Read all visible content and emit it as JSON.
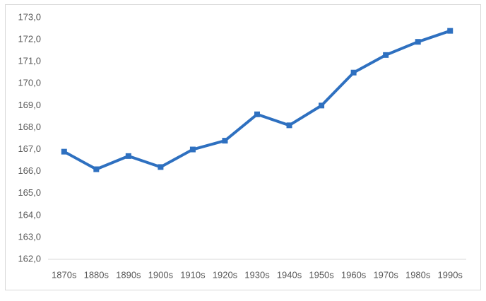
{
  "chart_data": {
    "type": "line",
    "categories": [
      "1870s",
      "1880s",
      "1890s",
      "1900s",
      "1910s",
      "1920s",
      "1930s",
      "1940s",
      "1950s",
      "1960s",
      "1970s",
      "1980s",
      "1990s"
    ],
    "series": [
      {
        "color": "#2e70c0",
        "values": [
          166.9,
          166.1,
          166.7,
          166.2,
          167.0,
          167.4,
          168.6,
          168.1,
          169.0,
          170.5,
          171.3,
          171.9,
          172.4
        ]
      }
    ],
    "ylim": [
      162,
      173
    ],
    "yticks": [
      {
        "value": 162,
        "label": "162,0"
      },
      {
        "value": 163,
        "label": "163,0"
      },
      {
        "value": 164,
        "label": "164,0"
      },
      {
        "value": 165,
        "label": "165,0"
      },
      {
        "value": 166,
        "label": "166,0"
      },
      {
        "value": 167,
        "label": "167,0"
      },
      {
        "value": 168,
        "label": "168,0"
      },
      {
        "value": 169,
        "label": "169,0"
      },
      {
        "value": 170,
        "label": "170,0"
      },
      {
        "value": 171,
        "label": "171,0"
      },
      {
        "value": 172,
        "label": "172,0"
      },
      {
        "value": 173,
        "label": "173,0"
      }
    ],
    "grid": false
  }
}
